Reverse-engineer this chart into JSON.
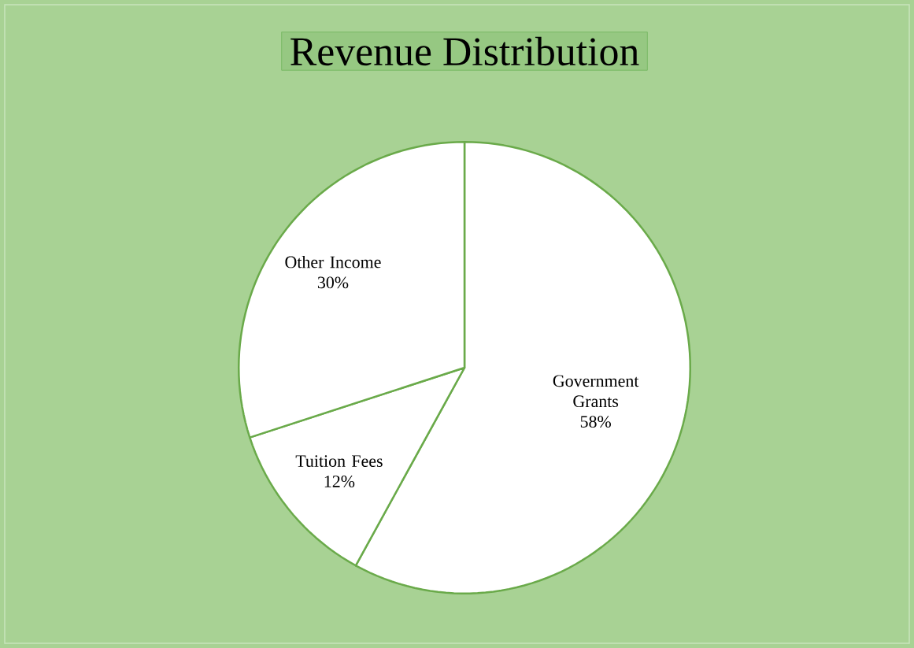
{
  "chart_data": {
    "type": "pie",
    "title": "Revenue Distribution",
    "categories": [
      "Government Grants",
      "Tuition Fees",
      "Other Income"
    ],
    "values": [
      58,
      12,
      30
    ],
    "value_labels": [
      "58%",
      "12%",
      "30%"
    ],
    "colors": [
      "#ffffff",
      "#ffffff",
      "#ffffff"
    ]
  }
}
